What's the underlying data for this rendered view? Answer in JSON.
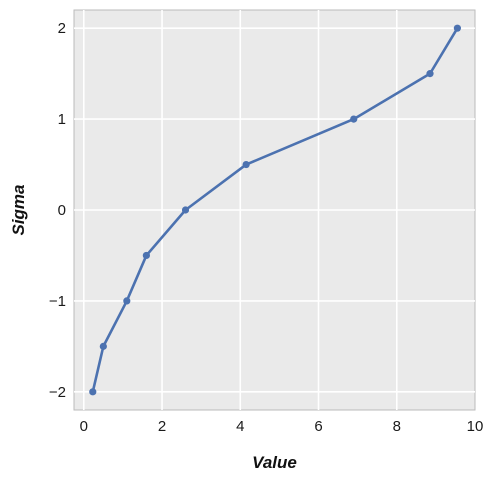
{
  "chart_data": {
    "type": "line",
    "xlabel": "Value",
    "ylabel": "Sigma",
    "xlim": [
      -0.25,
      10
    ],
    "ylim": [
      -2.2,
      2.2
    ],
    "x_ticks": [
      0,
      2,
      4,
      6,
      8,
      10
    ],
    "y_ticks": [
      -2,
      -1,
      0,
      1,
      2
    ],
    "x_tick_labels": [
      "0",
      "2",
      "4",
      "6",
      "8",
      "10"
    ],
    "y_tick_labels": [
      "−2",
      "−1",
      "0",
      "1",
      "2"
    ],
    "grid": true,
    "series": [
      {
        "x": [
          0.23,
          0.5,
          1.1,
          1.6,
          2.6,
          4.15,
          6.9,
          8.85,
          9.55
        ],
        "y": [
          -2,
          -1.5,
          -1,
          -0.5,
          0,
          0.5,
          1,
          1.5,
          2
        ]
      }
    ]
  },
  "colors": {
    "plot_background": "#eaeaea",
    "grid": "#ffffff",
    "line": "#4c72b0",
    "axes_edge": "#bbbbbb"
  }
}
